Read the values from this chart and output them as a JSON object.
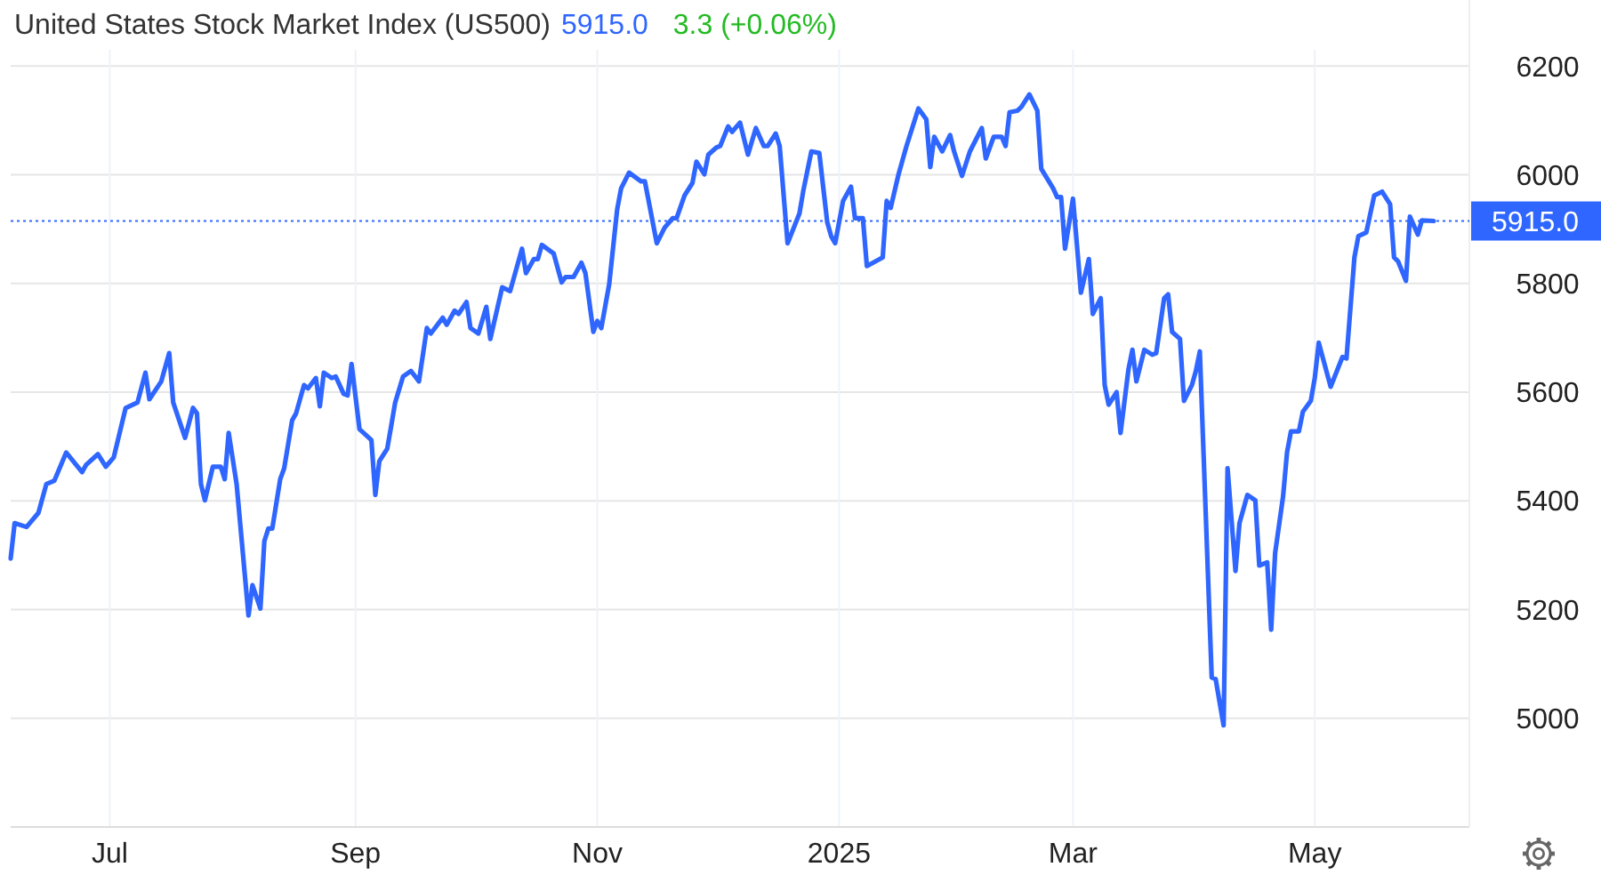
{
  "chart_data": {
    "type": "line",
    "title": "United States Stock Market Index (US500)",
    "annotations": [
      "5915.0",
      "3.3 (+0.06%)"
    ],
    "xlim": [
      "2024-06-06",
      "2025-06-09"
    ],
    "xticks": [
      {
        "value": "2024-07-01",
        "label": "Jul"
      },
      {
        "value": "2024-09-01",
        "label": "Sep"
      },
      {
        "value": "2024-11-01",
        "label": "Nov"
      },
      {
        "value": "2025-01-01",
        "label": "2025"
      },
      {
        "value": "2025-03-01",
        "label": "Mar"
      },
      {
        "value": "2025-05-01",
        "label": "May"
      }
    ],
    "ylim": [
      4800,
      6230
    ],
    "yticks": [
      5000,
      5200,
      5400,
      5600,
      5800,
      6000,
      6200
    ],
    "grid": true,
    "ref_lines": [
      {
        "axis": "y",
        "value": 5915,
        "label": "5915.0",
        "color": "#2f66ff",
        "line_style": "dotted"
      }
    ],
    "series": [
      {
        "color": "#2f66ff",
        "x": [
          "2024-06-06",
          "2024-06-07",
          "2024-06-10",
          "2024-06-13",
          "2024-06-15",
          "2024-06-17",
          "2024-06-20",
          "2024-06-24",
          "2024-06-25",
          "2024-06-28",
          "2024-06-30",
          "2024-07-02",
          "2024-07-05",
          "2024-07-08",
          "2024-07-10",
          "2024-07-11",
          "2024-07-14",
          "2024-07-16",
          "2024-07-17",
          "2024-07-20",
          "2024-07-22",
          "2024-07-23",
          "2024-07-24",
          "2024-07-25",
          "2024-07-27",
          "2024-07-29",
          "2024-07-30",
          "2024-07-31",
          "2024-08-02",
          "2024-08-05",
          "2024-08-06",
          "2024-08-08",
          "2024-08-09",
          "2024-08-10",
          "2024-08-11",
          "2024-08-13",
          "2024-08-14",
          "2024-08-16",
          "2024-08-17",
          "2024-08-19",
          "2024-08-20",
          "2024-08-22",
          "2024-08-23",
          "2024-08-24",
          "2024-08-26",
          "2024-08-27",
          "2024-08-29",
          "2024-08-30",
          "2024-08-31",
          "2024-09-02",
          "2024-09-05",
          "2024-09-06",
          "2024-09-07",
          "2024-09-09",
          "2024-09-10",
          "2024-09-11",
          "2024-09-13",
          "2024-09-15",
          "2024-09-17",
          "2024-09-19",
          "2024-09-20",
          "2024-09-23",
          "2024-09-24",
          "2024-09-26",
          "2024-09-27",
          "2024-09-29",
          "2024-09-30",
          "2024-10-02",
          "2024-10-04",
          "2024-10-05",
          "2024-10-08",
          "2024-10-10",
          "2024-10-13",
          "2024-10-14",
          "2024-10-16",
          "2024-10-17",
          "2024-10-18",
          "2024-10-21",
          "2024-10-23",
          "2024-10-24",
          "2024-10-26",
          "2024-10-28",
          "2024-10-29",
          "2024-10-31",
          "2024-11-01",
          "2024-11-02",
          "2024-11-04",
          "2024-11-06",
          "2024-11-07",
          "2024-11-09",
          "2024-11-12",
          "2024-11-13",
          "2024-11-16",
          "2024-11-18",
          "2024-11-20",
          "2024-11-21",
          "2024-11-23",
          "2024-11-25",
          "2024-11-26",
          "2024-11-28",
          "2024-11-29",
          "2024-12-01",
          "2024-12-02",
          "2024-12-04",
          "2024-12-05",
          "2024-12-07",
          "2024-12-09",
          "2024-12-11",
          "2024-12-13",
          "2024-12-14",
          "2024-12-16",
          "2024-12-17",
          "2024-12-19",
          "2024-12-22",
          "2024-12-23",
          "2024-12-25",
          "2024-12-27",
          "2024-12-29",
          "2024-12-30",
          "2024-12-31",
          "2025-01-02",
          "2025-01-04",
          "2025-01-05",
          "2025-01-07",
          "2025-01-08",
          "2025-01-12",
          "2025-01-13",
          "2025-01-14",
          "2025-01-16",
          "2025-01-18",
          "2025-01-21",
          "2025-01-23",
          "2025-01-24",
          "2025-01-25",
          "2025-01-27",
          "2025-01-29",
          "2025-01-30",
          "2025-02-01",
          "2025-02-03",
          "2025-02-06",
          "2025-02-07",
          "2025-02-09",
          "2025-02-11",
          "2025-02-12",
          "2025-02-13",
          "2025-02-15",
          "2025-02-16",
          "2025-02-18",
          "2025-02-20",
          "2025-02-21",
          "2025-02-24",
          "2025-02-25",
          "2025-02-26",
          "2025-02-27",
          "2025-03-01",
          "2025-03-02",
          "2025-03-03",
          "2025-03-05",
          "2025-03-06",
          "2025-03-08",
          "2025-03-09",
          "2025-03-10",
          "2025-03-12",
          "2025-03-13",
          "2025-03-15",
          "2025-03-16",
          "2025-03-17",
          "2025-03-19",
          "2025-03-21",
          "2025-03-22",
          "2025-03-24",
          "2025-03-25",
          "2025-03-26",
          "2025-03-28",
          "2025-03-29",
          "2025-03-31",
          "2025-04-01",
          "2025-04-02",
          "2025-04-05",
          "2025-04-06",
          "2025-04-08",
          "2025-04-09",
          "2025-04-11",
          "2025-04-12",
          "2025-04-14",
          "2025-04-16",
          "2025-04-17",
          "2025-04-19",
          "2025-04-20",
          "2025-04-21",
          "2025-04-23",
          "2025-04-24",
          "2025-04-25",
          "2025-04-27",
          "2025-04-28",
          "2025-04-30",
          "2025-05-01",
          "2025-05-02",
          "2025-05-05",
          "2025-05-08",
          "2025-05-09",
          "2025-05-11",
          "2025-05-12",
          "2025-05-14",
          "2025-05-16",
          "2025-05-18",
          "2025-05-20",
          "2025-05-21",
          "2025-05-22",
          "2025-05-24",
          "2025-05-25",
          "2025-05-27",
          "2025-05-28",
          "2025-05-31"
        ],
        "values": [
          5294,
          5359,
          5352,
          5378,
          5431,
          5437,
          5489,
          5453,
          5466,
          5486,
          5463,
          5480,
          5571,
          5581,
          5636,
          5587,
          5620,
          5672,
          5581,
          5516,
          5571,
          5561,
          5431,
          5401,
          5463,
          5463,
          5440,
          5525,
          5431,
          5189,
          5245,
          5202,
          5326,
          5349,
          5349,
          5440,
          5460,
          5548,
          5561,
          5613,
          5607,
          5626,
          5574,
          5636,
          5626,
          5629,
          5597,
          5594,
          5652,
          5532,
          5512,
          5411,
          5473,
          5496,
          5538,
          5581,
          5629,
          5639,
          5620,
          5718,
          5708,
          5737,
          5724,
          5750,
          5744,
          5766,
          5718,
          5708,
          5757,
          5698,
          5793,
          5786,
          5864,
          5819,
          5845,
          5845,
          5871,
          5855,
          5802,
          5812,
          5812,
          5838,
          5819,
          5711,
          5731,
          5718,
          5799,
          5936,
          5975,
          6004,
          5988,
          5988,
          5874,
          5903,
          5920,
          5920,
          5962,
          5985,
          6024,
          6001,
          6037,
          6050,
          6053,
          6089,
          6079,
          6096,
          6037,
          6086,
          6053,
          6053,
          6076,
          6053,
          5874,
          5929,
          5972,
          6043,
          6040,
          5913,
          5887,
          5874,
          5952,
          5978,
          5920,
          5920,
          5832,
          5848,
          5952,
          5939,
          6001,
          6053,
          6122,
          6102,
          6014,
          6070,
          6043,
          6073,
          6043,
          5998,
          6043,
          6086,
          6030,
          6070,
          6070,
          6053,
          6115,
          6118,
          6125,
          6148,
          6118,
          6011,
          5975,
          5959,
          5959,
          5864,
          5956,
          5871,
          5783,
          5845,
          5744,
          5773,
          5613,
          5577,
          5600,
          5525,
          5642,
          5678,
          5620,
          5678,
          5669,
          5672,
          5773,
          5780,
          5711,
          5698,
          5584,
          5613,
          5639,
          5675,
          5075,
          5072,
          4987,
          5460,
          5271,
          5359,
          5411,
          5401,
          5281,
          5287,
          5163,
          5304,
          5408,
          5489,
          5528,
          5528,
          5564,
          5584,
          5626,
          5691,
          5610,
          5665,
          5662,
          5848,
          5887,
          5894,
          5962,
          5969,
          5946,
          5848,
          5841,
          5805,
          5923,
          5890,
          5916,
          5915
        ]
      }
    ]
  }
}
